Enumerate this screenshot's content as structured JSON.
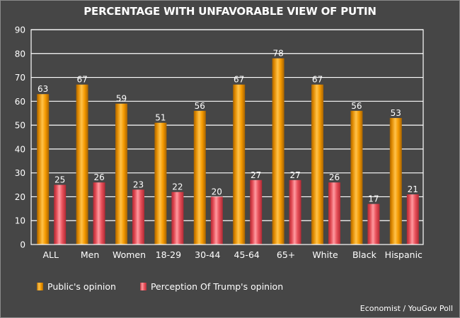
{
  "chart_data": {
    "type": "bar",
    "title": "PERCENTAGE WITH UNFAVORABLE VIEW OF PUTIN",
    "xlabel": "",
    "ylabel": "",
    "ylim": [
      0,
      90
    ],
    "yticks": [
      0,
      10,
      20,
      30,
      40,
      50,
      60,
      70,
      80,
      90
    ],
    "grid": true,
    "legend_position": "bottom-left",
    "categories": [
      "ALL",
      "Men",
      "Women",
      "18-29",
      "30-44",
      "45-64",
      "65+",
      "White",
      "Black",
      "Hispanic"
    ],
    "series": [
      {
        "name": "Public's opinion",
        "color": "#f59a00",
        "values": [
          63,
          67,
          59,
          51,
          56,
          67,
          78,
          67,
          56,
          53
        ]
      },
      {
        "name": "Perception Of Trump's opinion",
        "color": "#e8505a",
        "values": [
          25,
          26,
          23,
          22,
          20,
          27,
          27,
          26,
          17,
          21
        ]
      }
    ],
    "source": "Economist / YouGov Poll"
  }
}
